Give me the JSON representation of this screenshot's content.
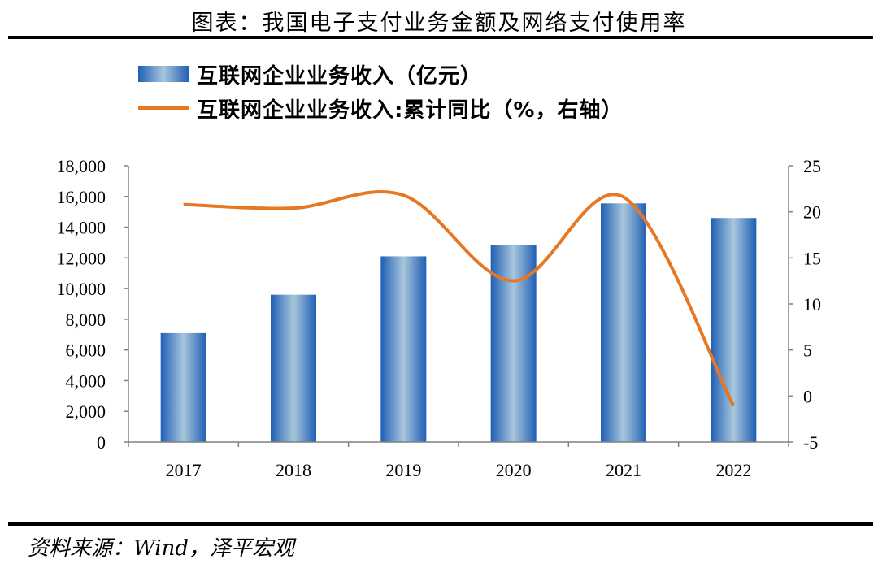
{
  "header": {
    "title": "图表：我国电子支付业务金额及网络支付使用率"
  },
  "footer": {
    "source": "资料来源：Wind，泽平宏观"
  },
  "legend": {
    "bar_label": "互联网企业业务收入（亿元）",
    "line_label": "互联网企业业务收入:累计同比（%，右轴）"
  },
  "colors": {
    "bar_edge": "#1f5fb5",
    "bar_center": "#a8c6dc",
    "line": "#e87722"
  },
  "chart_data": {
    "type": "bar",
    "categories": [
      "2017",
      "2018",
      "2019",
      "2020",
      "2021",
      "2022"
    ],
    "series": [
      {
        "name": "互联网企业业务收入（亿元）",
        "type": "bar",
        "axis": "left",
        "values": [
          7100,
          9600,
          12100,
          12850,
          15550,
          14600
        ]
      },
      {
        "name": "互联网企业业务收入:累计同比（%，右轴）",
        "type": "line",
        "axis": "right",
        "smooth": true,
        "values": [
          20.8,
          20.4,
          21.8,
          12.5,
          21.6,
          -1.1
        ]
      }
    ],
    "ylim": [
      0,
      18000
    ],
    "y_ticks": [
      "0",
      "2,000",
      "4,000",
      "6,000",
      "8,000",
      "10,000",
      "12,000",
      "14,000",
      "16,000",
      "18,000"
    ],
    "y2lim": [
      -5,
      25
    ],
    "y2_ticks": [
      "-5",
      "0",
      "5",
      "10",
      "15",
      "20",
      "25"
    ],
    "grid": false,
    "legend_position": "top-left"
  }
}
